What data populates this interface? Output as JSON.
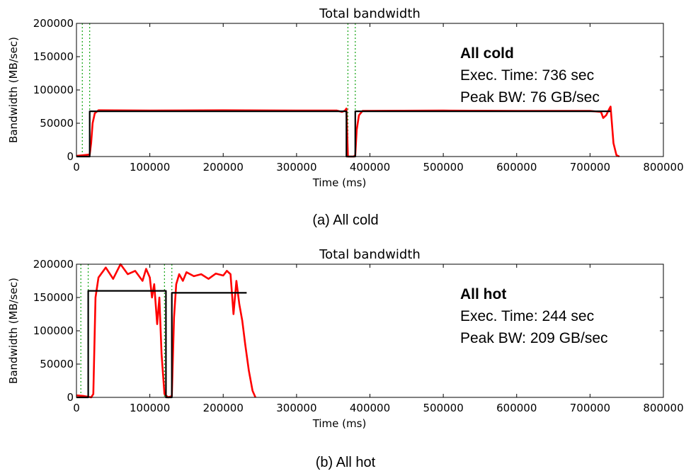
{
  "figure": {
    "panels": [
      {
        "caption": "(a) All cold",
        "annotation": {
          "title": "All cold",
          "exec_time": "Exec. Time: 736 sec",
          "peak_bw": "Peak BW: 76 GB/sec"
        }
      },
      {
        "caption": "(b) All hot",
        "annotation": {
          "title": "All hot",
          "exec_time": "Exec. Time: 244 sec",
          "peak_bw": "Peak BW: 209 GB/sec"
        }
      }
    ]
  },
  "chart_data": [
    {
      "type": "line",
      "title": "Total bandwidth",
      "xlabel": "Time (ms)",
      "ylabel": "Bandwidth (MB/sec)",
      "xlim": [
        0,
        800000
      ],
      "ylim": [
        0,
        200000
      ],
      "xticks": [
        0,
        100000,
        200000,
        300000,
        400000,
        500000,
        600000,
        700000,
        800000
      ],
      "yticks": [
        0,
        50000,
        100000,
        150000,
        200000
      ],
      "xtick_labels": [
        "0",
        "100000",
        "200000",
        "300000",
        "400000",
        "500000",
        "600000",
        "700000",
        "800000"
      ],
      "ytick_labels": [
        "0",
        "50000",
        "100000",
        "150000",
        "200000"
      ],
      "grid": false,
      "vlines": [
        8000,
        18000,
        370000,
        380000
      ],
      "series": [
        {
          "color": "#ff0000",
          "x": [
            0,
            10000,
            18000,
            20000,
            22000,
            25000,
            30000,
            100000,
            200000,
            300000,
            355000,
            362000,
            366000,
            368000,
            370000,
            378000,
            380000,
            382000,
            385000,
            390000,
            500000,
            600000,
            700000,
            715000,
            718000,
            722000,
            726000,
            728000,
            732000,
            736000,
            740000
          ],
          "y": [
            1000,
            2000,
            3000,
            20000,
            50000,
            65000,
            69500,
            69000,
            69500,
            69000,
            69000,
            67000,
            69000,
            72000,
            0,
            0,
            2000,
            40000,
            62000,
            68500,
            69000,
            68500,
            68500,
            67000,
            58000,
            62000,
            71000,
            75000,
            20000,
            2000,
            0
          ]
        },
        {
          "color": "#000000",
          "x": [
            0,
            18000,
            18000,
            368000,
            368000,
            380000,
            380000,
            728000
          ],
          "y": [
            0,
            0,
            68000,
            68000,
            0,
            0,
            68000,
            68000
          ]
        }
      ]
    },
    {
      "type": "line",
      "title": "Total bandwidth",
      "xlabel": "Time (ms)",
      "ylabel": "Bandwidth (MB/sec)",
      "xlim": [
        0,
        800000
      ],
      "ylim": [
        0,
        200000
      ],
      "xticks": [
        0,
        100000,
        200000,
        300000,
        400000,
        500000,
        600000,
        700000,
        800000
      ],
      "yticks": [
        0,
        50000,
        100000,
        150000,
        200000
      ],
      "xtick_labels": [
        "0",
        "100000",
        "200000",
        "300000",
        "400000",
        "500000",
        "600000",
        "700000",
        "800000"
      ],
      "ytick_labels": [
        "0",
        "50000",
        "100000",
        "150000",
        "200000"
      ],
      "grid": false,
      "vlines": [
        6000,
        16000,
        120000,
        130000
      ],
      "series": [
        {
          "color": "#ff0000",
          "x": [
            0,
            10000,
            16000,
            20000,
            23000,
            26000,
            30000,
            40000,
            50000,
            60000,
            70000,
            80000,
            90000,
            95000,
            100000,
            103000,
            106000,
            110000,
            113000,
            116000,
            120000,
            125000,
            130000,
            133000,
            136000,
            140000,
            145000,
            150000,
            160000,
            170000,
            180000,
            190000,
            200000,
            205000,
            210000,
            214000,
            218000,
            222000,
            226000,
            230000,
            235000,
            240000,
            244000
          ],
          "y": [
            3000,
            2000,
            1000,
            0,
            5000,
            150000,
            180000,
            195000,
            178000,
            200000,
            185000,
            190000,
            175000,
            193000,
            180000,
            150000,
            170000,
            110000,
            150000,
            65000,
            5000,
            0,
            2000,
            120000,
            170000,
            185000,
            175000,
            188000,
            182000,
            185000,
            178000,
            186000,
            183000,
            190000,
            185000,
            125000,
            175000,
            140000,
            115000,
            80000,
            40000,
            10000,
            0
          ]
        },
        {
          "color": "#000000",
          "x": [
            0,
            16000,
            16000,
            122000,
            122000,
            130000,
            130000,
            232000
          ],
          "y": [
            0,
            0,
            160000,
            160000,
            0,
            0,
            157000,
            157000
          ]
        }
      ]
    }
  ]
}
